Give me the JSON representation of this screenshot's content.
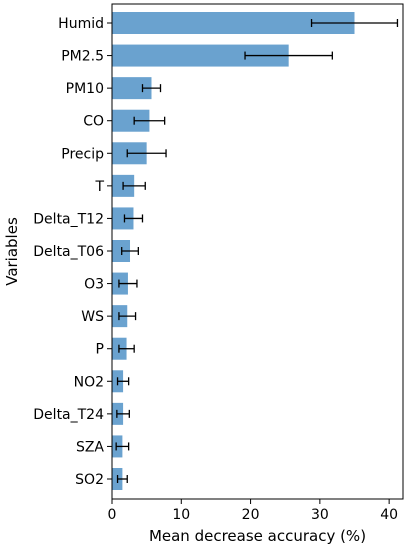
{
  "chart_data": {
    "type": "bar",
    "orientation": "horizontal",
    "title": "",
    "xlabel": "Mean decrease accuracy (%)",
    "ylabel": "Variables",
    "xlim": [
      0,
      42
    ],
    "xticks": [
      0,
      10,
      20,
      30,
      40
    ],
    "grid": false,
    "bar_color": "#6aa2cf",
    "errorbar_color": "#000000",
    "categories": [
      "Humid",
      "PM2.5",
      "PM10",
      "CO",
      "Precip",
      "T",
      "Delta_T12",
      "Delta_T06",
      "O3",
      "WS",
      "P",
      "NO2",
      "Delta_T24",
      "SZA",
      "SO2"
    ],
    "values": [
      35.0,
      25.5,
      5.7,
      5.4,
      5.0,
      3.2,
      3.1,
      2.6,
      2.3,
      2.2,
      2.1,
      1.6,
      1.6,
      1.5,
      1.5
    ],
    "error": [
      6.2,
      6.3,
      1.3,
      2.2,
      2.8,
      1.6,
      1.3,
      1.2,
      1.3,
      1.2,
      1.1,
      0.8,
      0.9,
      0.9,
      0.7
    ]
  }
}
